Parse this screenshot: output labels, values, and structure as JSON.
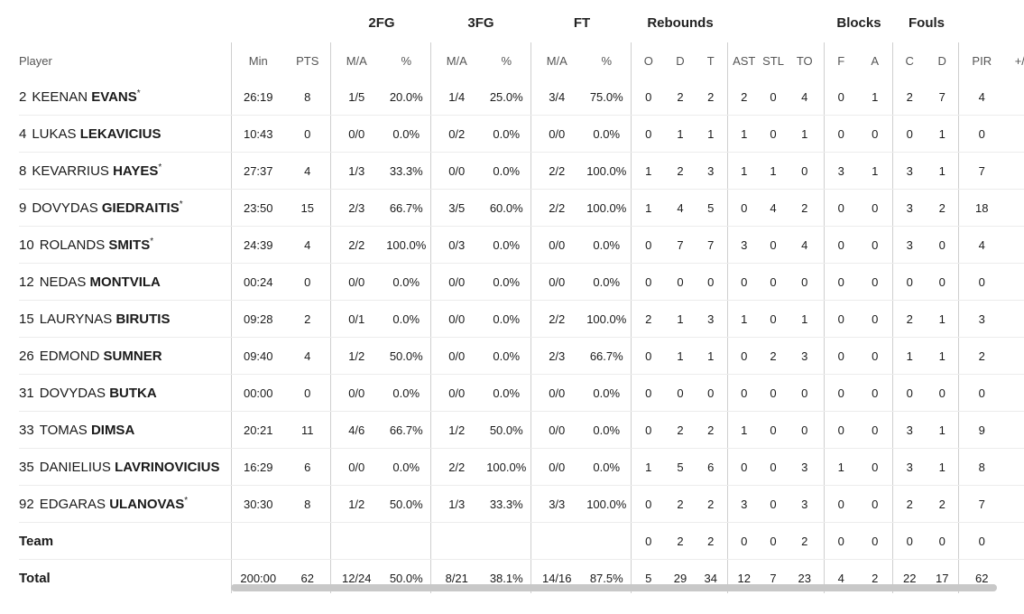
{
  "group_headers": {
    "fg2": "2FG",
    "fg3": "3FG",
    "ft": "FT",
    "rebounds": "Rebounds",
    "blocks": "Blocks",
    "fouls": "Fouls"
  },
  "columns": [
    "Player",
    "Min",
    "PTS",
    "M/A",
    "%",
    "M/A",
    "%",
    "M/A",
    "%",
    "O",
    "D",
    "T",
    "AST",
    "STL",
    "TO",
    "F",
    "A",
    "C",
    "D",
    "PIR",
    "+/-"
  ],
  "players": [
    {
      "num": "2",
      "first": "KEENAN",
      "last": "EVANS",
      "starter": true,
      "stats": [
        "26:19",
        "8",
        "1/5",
        "20.0%",
        "1/4",
        "25.0%",
        "3/4",
        "75.0%",
        "0",
        "2",
        "2",
        "2",
        "0",
        "4",
        "0",
        "1",
        "2",
        "7",
        "4",
        ""
      ]
    },
    {
      "num": "4",
      "first": "LUKAS",
      "last": "LEKAVICIUS",
      "starter": false,
      "stats": [
        "10:43",
        "0",
        "0/0",
        "0.0%",
        "0/2",
        "0.0%",
        "0/0",
        "0.0%",
        "0",
        "1",
        "1",
        "1",
        "0",
        "1",
        "0",
        "0",
        "0",
        "1",
        "0",
        ""
      ]
    },
    {
      "num": "8",
      "first": "KEVARRIUS",
      "last": "HAYES",
      "starter": true,
      "stats": [
        "27:37",
        "4",
        "1/3",
        "33.3%",
        "0/0",
        "0.0%",
        "2/2",
        "100.0%",
        "1",
        "2",
        "3",
        "1",
        "1",
        "0",
        "3",
        "1",
        "3",
        "1",
        "7",
        ""
      ]
    },
    {
      "num": "9",
      "first": "DOVYDAS",
      "last": "GIEDRAITIS",
      "starter": true,
      "stats": [
        "23:50",
        "15",
        "2/3",
        "66.7%",
        "3/5",
        "60.0%",
        "2/2",
        "100.0%",
        "1",
        "4",
        "5",
        "0",
        "4",
        "2",
        "0",
        "0",
        "3",
        "2",
        "18",
        ""
      ]
    },
    {
      "num": "10",
      "first": "ROLANDS",
      "last": "SMITS",
      "starter": true,
      "stats": [
        "24:39",
        "4",
        "2/2",
        "100.0%",
        "0/3",
        "0.0%",
        "0/0",
        "0.0%",
        "0",
        "7",
        "7",
        "3",
        "0",
        "4",
        "0",
        "0",
        "3",
        "0",
        "4",
        ""
      ]
    },
    {
      "num": "12",
      "first": "NEDAS",
      "last": "MONTVILA",
      "starter": false,
      "stats": [
        "00:24",
        "0",
        "0/0",
        "0.0%",
        "0/0",
        "0.0%",
        "0/0",
        "0.0%",
        "0",
        "0",
        "0",
        "0",
        "0",
        "0",
        "0",
        "0",
        "0",
        "0",
        "0",
        ""
      ]
    },
    {
      "num": "15",
      "first": "LAURYNAS",
      "last": "BIRUTIS",
      "starter": false,
      "stats": [
        "09:28",
        "2",
        "0/1",
        "0.0%",
        "0/0",
        "0.0%",
        "2/2",
        "100.0%",
        "2",
        "1",
        "3",
        "1",
        "0",
        "1",
        "0",
        "0",
        "2",
        "1",
        "3",
        ""
      ]
    },
    {
      "num": "26",
      "first": "EDMOND",
      "last": "SUMNER",
      "starter": false,
      "stats": [
        "09:40",
        "4",
        "1/2",
        "50.0%",
        "0/0",
        "0.0%",
        "2/3",
        "66.7%",
        "0",
        "1",
        "1",
        "0",
        "2",
        "3",
        "0",
        "0",
        "1",
        "1",
        "2",
        ""
      ]
    },
    {
      "num": "31",
      "first": "DOVYDAS",
      "last": "BUTKA",
      "starter": false,
      "stats": [
        "00:00",
        "0",
        "0/0",
        "0.0%",
        "0/0",
        "0.0%",
        "0/0",
        "0.0%",
        "0",
        "0",
        "0",
        "0",
        "0",
        "0",
        "0",
        "0",
        "0",
        "0",
        "0",
        ""
      ]
    },
    {
      "num": "33",
      "first": "TOMAS",
      "last": "DIMSA",
      "starter": false,
      "stats": [
        "20:21",
        "11",
        "4/6",
        "66.7%",
        "1/2",
        "50.0%",
        "0/0",
        "0.0%",
        "0",
        "2",
        "2",
        "1",
        "0",
        "0",
        "0",
        "0",
        "3",
        "1",
        "9",
        ""
      ]
    },
    {
      "num": "35",
      "first": "DANIELIUS",
      "last": "LAVRINOVICIUS",
      "starter": false,
      "stats": [
        "16:29",
        "6",
        "0/0",
        "0.0%",
        "2/2",
        "100.0%",
        "0/0",
        "0.0%",
        "1",
        "5",
        "6",
        "0",
        "0",
        "3",
        "1",
        "0",
        "3",
        "1",
        "8",
        ""
      ]
    },
    {
      "num": "92",
      "first": "EDGARAS",
      "last": "ULANOVAS",
      "starter": true,
      "stats": [
        "30:30",
        "8",
        "1/2",
        "50.0%",
        "1/3",
        "33.3%",
        "3/3",
        "100.0%",
        "0",
        "2",
        "2",
        "3",
        "0",
        "3",
        "0",
        "0",
        "2",
        "2",
        "7",
        ""
      ]
    }
  ],
  "team_row": {
    "label": "Team",
    "stats": [
      "",
      "",
      "",
      "",
      "",
      "",
      "",
      "",
      "0",
      "2",
      "2",
      "0",
      "0",
      "2",
      "0",
      "0",
      "0",
      "0",
      "0",
      ""
    ]
  },
  "total_row": {
    "label": "Total",
    "stats": [
      "200:00",
      "62",
      "12/24",
      "50.0%",
      "8/21",
      "38.1%",
      "14/16",
      "87.5%",
      "5",
      "29",
      "34",
      "12",
      "7",
      "23",
      "4",
      "2",
      "22",
      "17",
      "62",
      ""
    ]
  },
  "starter_mark": "*",
  "colors": {
    "divider": "#cfcfcf",
    "row_border": "#ececec",
    "scrollbar_thumb": "#c8c8c8"
  },
  "scrollbar": {
    "horizontal_position_fraction": 0.0
  }
}
